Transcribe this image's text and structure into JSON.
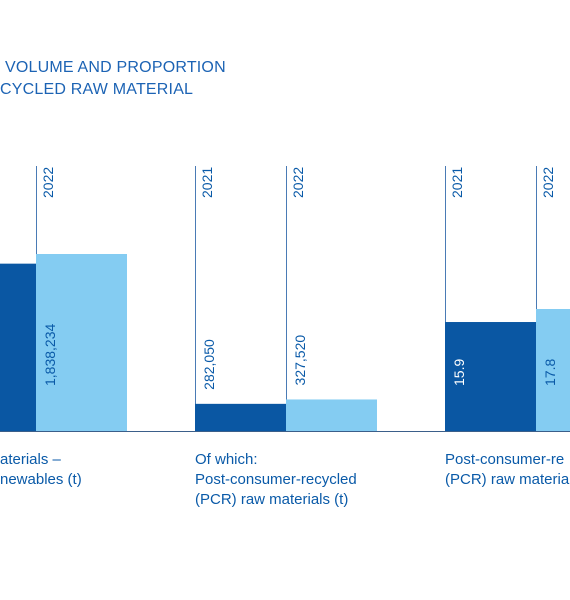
{
  "title": {
    "line1": "VOLUME AND PROPORTION",
    "line2": "CYCLED RAW MATERIAL"
  },
  "colors": {
    "year_2021": "#0a57a3",
    "year_2022": "#84ccf2",
    "axis": "#3b5f8a",
    "year_line": "#4a7bb5",
    "text": "#0a5aa8"
  },
  "chart_data": {
    "type": "bar",
    "series": [
      {
        "name": "2021"
      },
      {
        "name": "2022"
      }
    ],
    "groups": [
      {
        "label_lines": [
          "aterials –",
          "newables (t)"
        ],
        "bars": [
          {
            "year": "2021",
            "value": 1738000,
            "label": ""
          },
          {
            "year": "2022",
            "value": 1838234,
            "label": "1,838,234"
          }
        ]
      },
      {
        "label_lines": [
          "Of which:",
          "Post-consumer-recycled",
          "(PCR) raw materials (t)"
        ],
        "bars": [
          {
            "year": "2021",
            "value": 282050,
            "label": "282,050"
          },
          {
            "year": "2022",
            "value": 327520,
            "label": "327,520"
          }
        ]
      },
      {
        "label_lines": [
          "Post-consumer-re",
          "(PCR) raw materia"
        ],
        "bars": [
          {
            "year": "2021",
            "value": 15.9,
            "label": "15.9"
          },
          {
            "year": "2022",
            "value": 17.8,
            "label": "17.8"
          }
        ]
      }
    ]
  }
}
